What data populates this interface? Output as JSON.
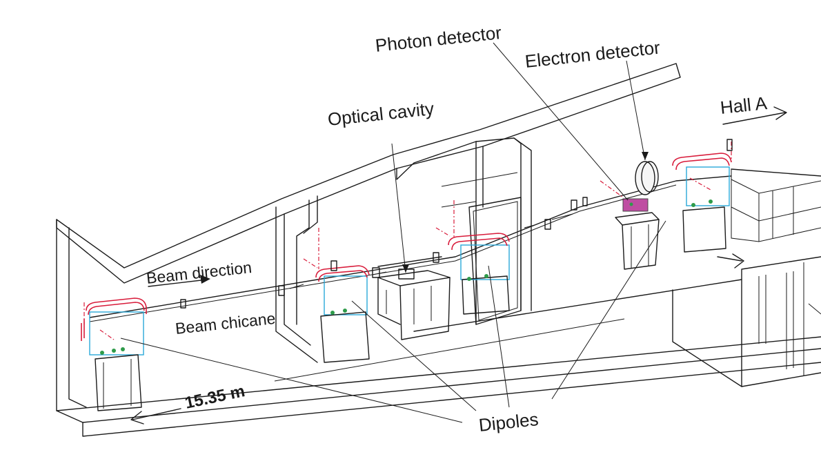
{
  "labels": {
    "photon_detector": "Photon detector",
    "electron_detector": "Electron detector",
    "hall_a": "Hall A",
    "optical_cavity": "Optical cavity",
    "beam_direction": "Beam direction",
    "beam_chicane": "Beam chicane",
    "length": "15.35 m",
    "dipoles": "Dipoles"
  },
  "colors": {
    "line": "#1a1a1a",
    "magnet_coil": "#d81b3a",
    "magnet_body": "#29a8d8",
    "detector_element": "#b0218c",
    "marker_green": "#2e9b4a"
  }
}
